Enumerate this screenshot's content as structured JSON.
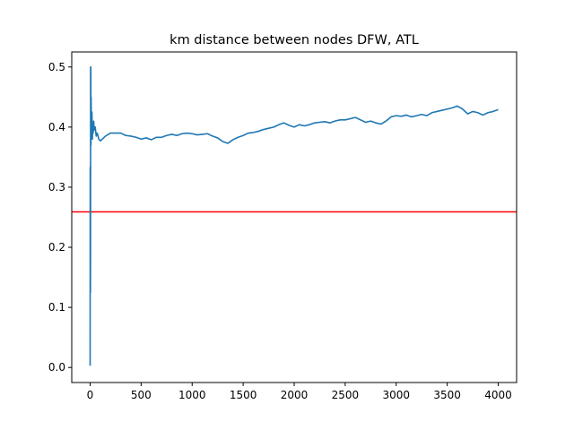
{
  "chart_data": {
    "type": "line",
    "title": "km distance between nodes DFW, ATL",
    "xlabel": "",
    "ylabel": "",
    "xlim": [
      -180,
      4180
    ],
    "ylim": [
      -0.025,
      0.525
    ],
    "xticks": [
      0,
      500,
      1000,
      1500,
      2000,
      2500,
      3000,
      3500,
      4000
    ],
    "yticks": [
      0.0,
      0.1,
      0.2,
      0.3,
      0.4,
      0.5
    ],
    "ytick_labels": [
      "0.0",
      "0.1",
      "0.2",
      "0.3",
      "0.4",
      "0.5"
    ],
    "grid": false,
    "legend": "none",
    "series": [
      {
        "color": "#1f77b4",
        "x": [
          0,
          1,
          2,
          3,
          4,
          5,
          6,
          7,
          8,
          10,
          12,
          15,
          18,
          22,
          26,
          30,
          35,
          40,
          50,
          60,
          70,
          85,
          100,
          120,
          150,
          200,
          250,
          300,
          350,
          400,
          450,
          500,
          550,
          600,
          650,
          700,
          750,
          800,
          850,
          900,
          950,
          1000,
          1050,
          1100,
          1150,
          1200,
          1250,
          1300,
          1350,
          1400,
          1450,
          1500,
          1550,
          1600,
          1650,
          1700,
          1750,
          1800,
          1850,
          1900,
          1950,
          2000,
          2050,
          2100,
          2150,
          2200,
          2250,
          2300,
          2350,
          2400,
          2450,
          2500,
          2550,
          2600,
          2650,
          2700,
          2750,
          2800,
          2850,
          2900,
          2950,
          3000,
          3050,
          3100,
          3150,
          3200,
          3250,
          3300,
          3350,
          3400,
          3450,
          3500,
          3550,
          3600,
          3650,
          3700,
          3750,
          3800,
          3850,
          3900,
          3950,
          4000
        ],
        "y": [
          0.003,
          0.333,
          0.25,
          0.125,
          0.2,
          0.5,
          0.43,
          0.5,
          0.37,
          0.45,
          0.39,
          0.41,
          0.425,
          0.38,
          0.405,
          0.39,
          0.41,
          0.395,
          0.4,
          0.385,
          0.39,
          0.38,
          0.377,
          0.38,
          0.385,
          0.39,
          0.39,
          0.39,
          0.386,
          0.385,
          0.383,
          0.38,
          0.382,
          0.379,
          0.383,
          0.383,
          0.386,
          0.388,
          0.386,
          0.389,
          0.39,
          0.389,
          0.387,
          0.388,
          0.389,
          0.385,
          0.382,
          0.376,
          0.373,
          0.379,
          0.383,
          0.386,
          0.39,
          0.391,
          0.393,
          0.396,
          0.398,
          0.4,
          0.404,
          0.407,
          0.403,
          0.4,
          0.404,
          0.402,
          0.404,
          0.407,
          0.408,
          0.409,
          0.407,
          0.41,
          0.412,
          0.412,
          0.414,
          0.416,
          0.412,
          0.408,
          0.41,
          0.407,
          0.405,
          0.41,
          0.417,
          0.419,
          0.418,
          0.42,
          0.417,
          0.419,
          0.421,
          0.419,
          0.424,
          0.426,
          0.428,
          0.43,
          0.432,
          0.435,
          0.43,
          0.422,
          0.426,
          0.424,
          0.42,
          0.424,
          0.426,
          0.429
        ]
      }
    ],
    "hline": {
      "y": 0.259,
      "color": "#ff0000"
    }
  }
}
